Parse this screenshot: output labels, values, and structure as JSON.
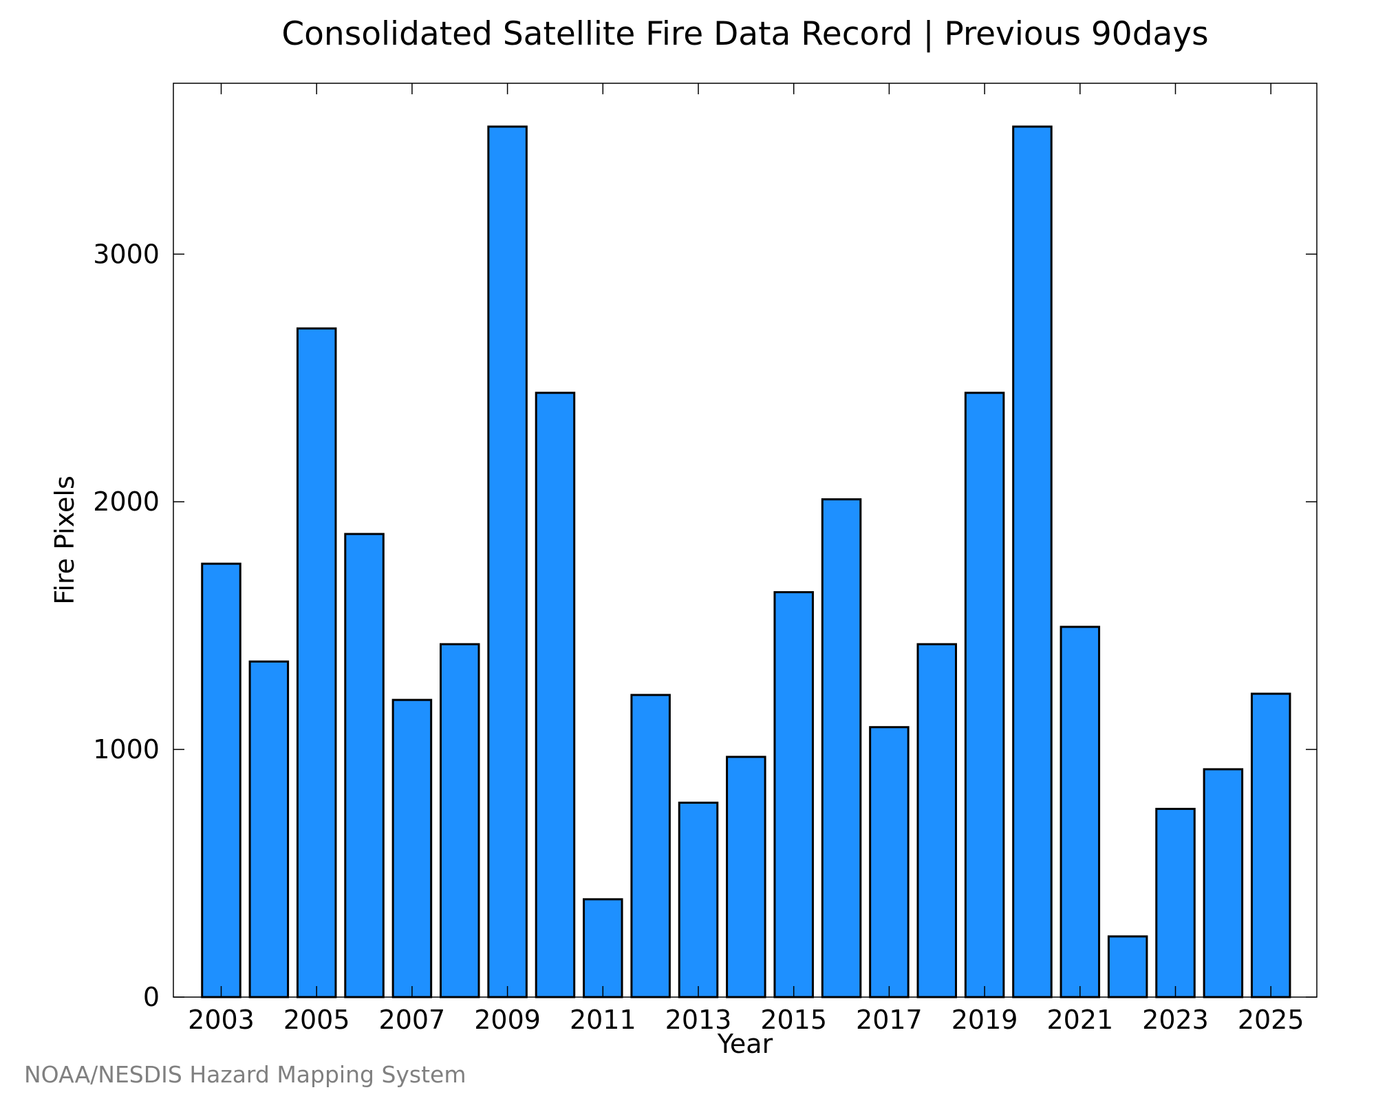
{
  "credit": "NOAA/NESDIS Hazard Mapping System",
  "colors": {
    "bar_fill": "#1e90ff",
    "bar_stroke": "#000000",
    "axis": "#000000",
    "credit_text": "#808080"
  },
  "chart_data": {
    "type": "bar",
    "title": "Consolidated Satellite Fire Data Record | Previous 90days",
    "xlabel": "Year",
    "ylabel": "Fire Pixels",
    "categories": [
      "2003",
      "2004",
      "2005",
      "2006",
      "2007",
      "2008",
      "2009",
      "2010",
      "2011",
      "2012",
      "2013",
      "2014",
      "2015",
      "2016",
      "2017",
      "2018",
      "2019",
      "2020",
      "2021",
      "2022",
      "2023",
      "2024",
      "2025"
    ],
    "values": [
      1750,
      1355,
      2700,
      1870,
      1200,
      1425,
      3515,
      2440,
      395,
      1220,
      785,
      970,
      1635,
      2010,
      1090,
      1425,
      2440,
      3515,
      1495,
      245,
      760,
      920,
      1225
    ],
    "x_tick_labels": [
      "2003",
      "2005",
      "2007",
      "2009",
      "2011",
      "2013",
      "2015",
      "2017",
      "2019",
      "2021",
      "2023",
      "2025"
    ],
    "y_tick_labels": [
      "0",
      "1000",
      "2000",
      "3000"
    ],
    "y_ticks": [
      0,
      1000,
      2000,
      3000
    ],
    "ylim": [
      0,
      3690
    ],
    "grid": false,
    "legend": "none"
  }
}
